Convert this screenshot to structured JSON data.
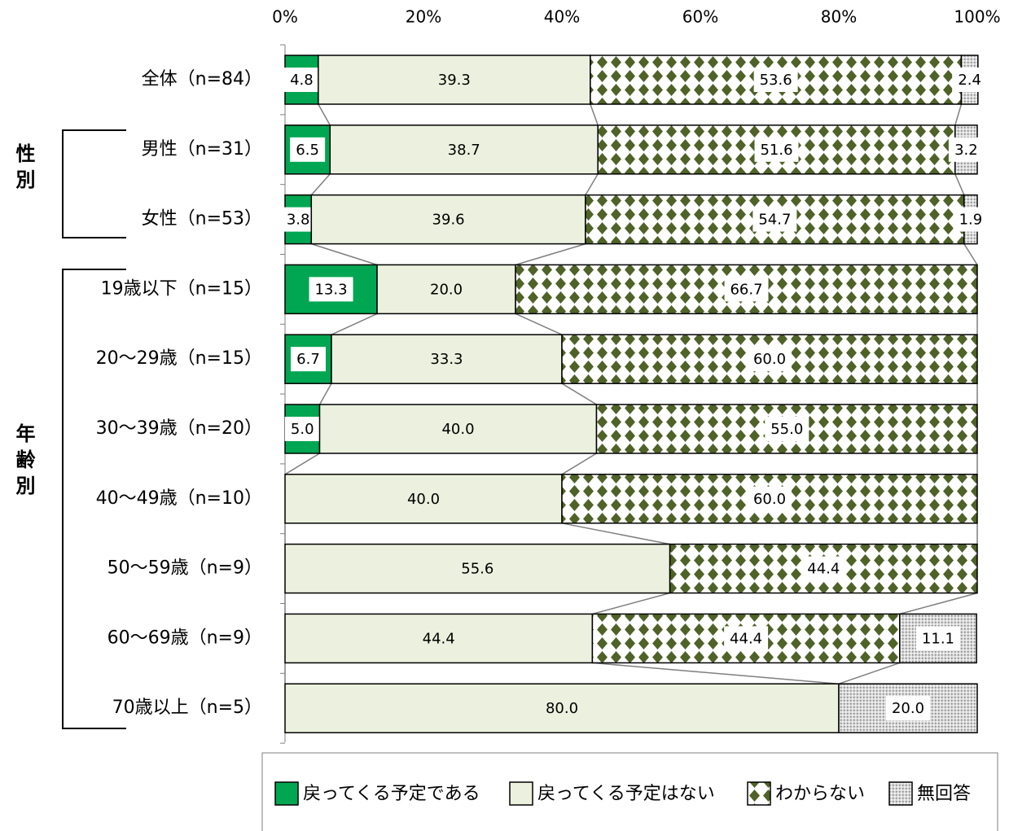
{
  "chart_data": {
    "type": "stacked-bar-horizontal",
    "categories": [
      "全体（n=84）",
      "男性（n=31）",
      "女性（n=53）",
      "19歳以下（n=15）",
      "20～29歳（n=15）",
      "30～39歳（n=20）",
      "40～49歳（n=10）",
      "50～59歳（n=9）",
      "60～69歳（n=9）",
      "70歳以上（n=5）"
    ],
    "group_labels": [
      "性別",
      "年齢別"
    ],
    "series": [
      {
        "name": "戻ってくる予定である",
        "color": "#00a651",
        "values": [
          4.8,
          6.5,
          3.8,
          13.3,
          6.7,
          5.0,
          null,
          null,
          null,
          null
        ],
        "value_labels": [
          "4.8",
          "6.5",
          "3.8",
          "13.3",
          "6.7",
          "5.0",
          null,
          null,
          null,
          null
        ]
      },
      {
        "name": "戻ってくる予定はない",
        "color": "#ebf1de",
        "values": [
          39.3,
          38.7,
          39.6,
          20.0,
          33.3,
          40.0,
          40.0,
          55.6,
          44.4,
          80.0
        ],
        "value_labels": [
          "39.3",
          "38.7",
          "39.6",
          "20.0",
          "33.3",
          "40.0",
          "40.0",
          "55.6",
          "44.4",
          "80.0"
        ]
      },
      {
        "name": "わからない",
        "color": "#4f6228",
        "values": [
          53.6,
          51.6,
          54.7,
          66.7,
          60.0,
          55.0,
          60.0,
          44.4,
          44.4,
          null
        ],
        "value_labels": [
          "53.6",
          "51.6",
          "54.7",
          "66.7",
          "60.0",
          "55.0",
          "60.0",
          "44.4",
          "44.4",
          null
        ]
      },
      {
        "name": "無回答",
        "color": "#a6a6a6",
        "values": [
          2.4,
          3.2,
          1.9,
          null,
          null,
          null,
          null,
          null,
          11.1,
          20.0
        ],
        "value_labels": [
          "2.4",
          "3.2",
          "1.9",
          null,
          null,
          null,
          null,
          null,
          "11.1",
          "20.0"
        ]
      }
    ],
    "xlim": [
      0,
      100
    ],
    "xticks": [
      {
        "value": 0,
        "label": "0%"
      },
      {
        "value": 20,
        "label": "20%"
      },
      {
        "value": 40,
        "label": "40%"
      },
      {
        "value": 60,
        "label": "60%"
      },
      {
        "value": 80,
        "label": "80%"
      },
      {
        "value": 100,
        "label": "100%"
      }
    ],
    "legend": "bottom"
  }
}
